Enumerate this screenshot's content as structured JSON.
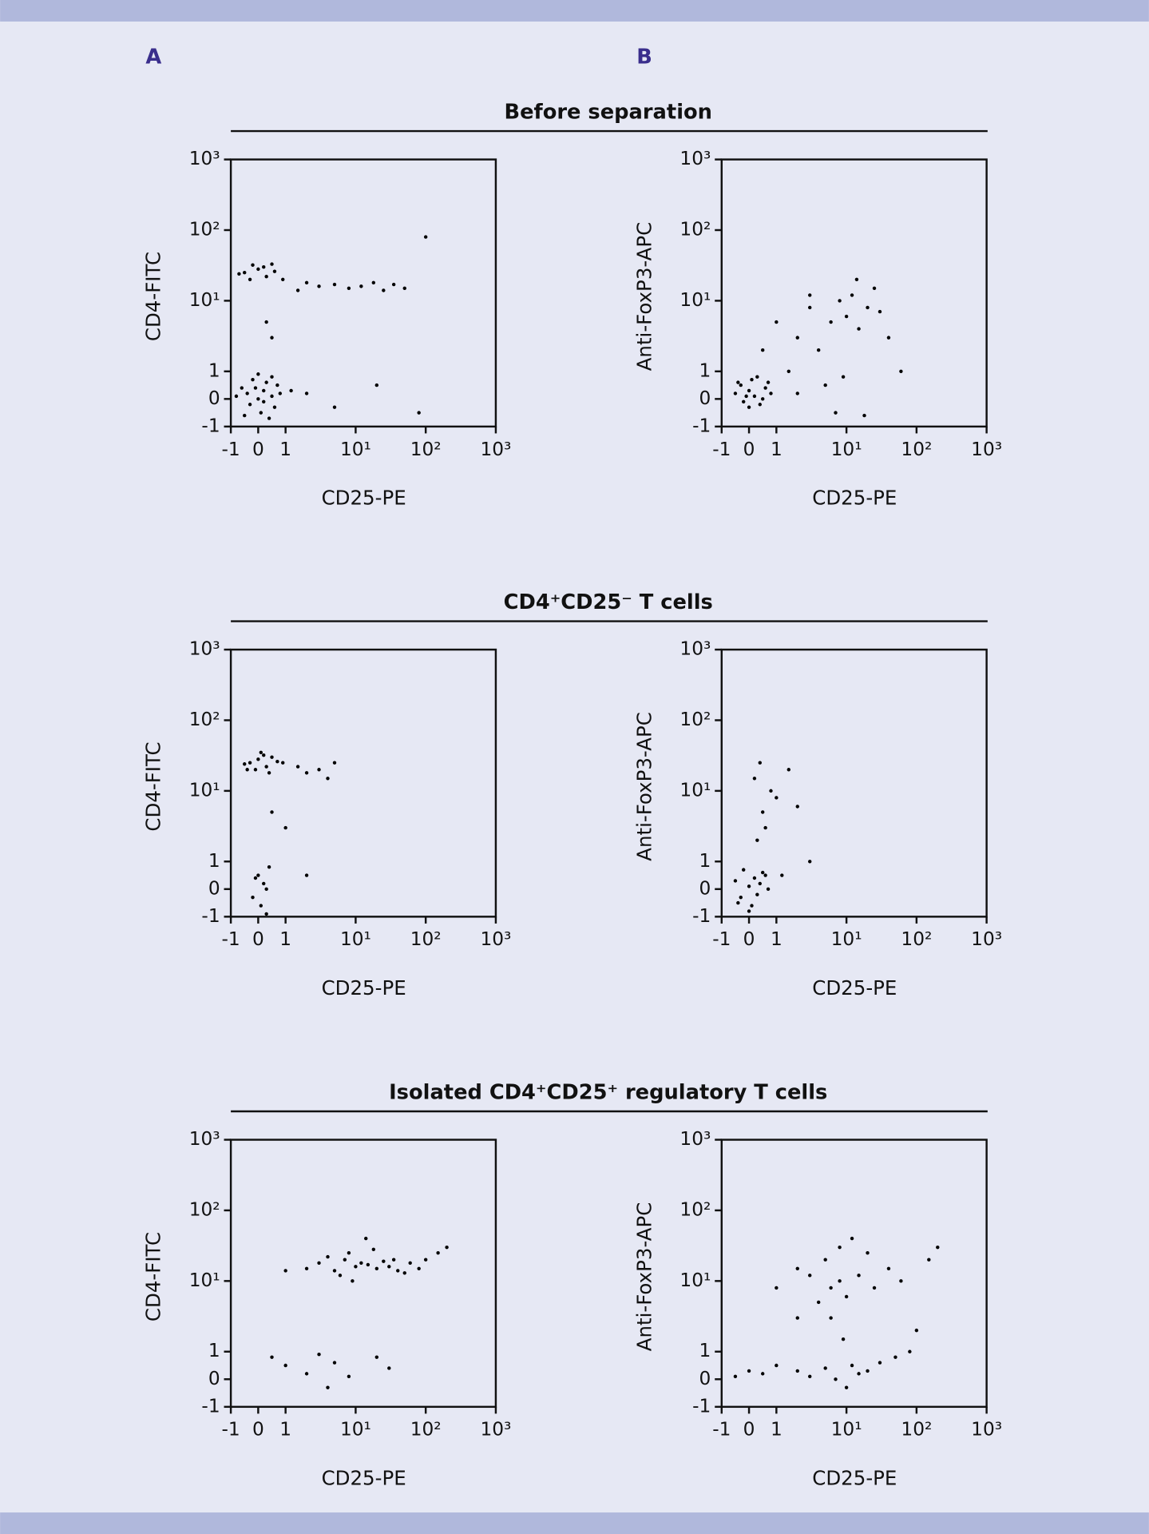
{
  "panel_labels": [
    "A",
    "B"
  ],
  "sections": [
    "Before separation",
    "CD4⁺CD25⁻ T cells",
    "Isolated CD4⁺CD25⁺ regulatory T cells"
  ],
  "chart_data": [
    {
      "type": "scatter",
      "xlabel": "CD25-PE",
      "ylabel": "CD4-FITC",
      "xscale": "biexponential",
      "yscale": "biexponential",
      "color": "#000000",
      "xlim": [
        -1,
        1000
      ],
      "ylim": [
        -1,
        1000
      ],
      "xticks": [
        -1,
        0,
        1,
        {
          "value": 10,
          "label": "10¹"
        },
        {
          "value": 100,
          "label": "10²"
        },
        {
          "value": 1000,
          "label": "10³"
        }
      ],
      "yticks": [
        -1,
        0,
        1,
        {
          "value": 10,
          "label": "10¹"
        },
        {
          "value": 100,
          "label": "10²"
        },
        {
          "value": 1000,
          "label": "10³"
        }
      ],
      "x": [
        0,
        0.2,
        -0.3,
        0.5,
        -0.6,
        0.1,
        0.3,
        -0.2,
        0.6,
        -0.5,
        0.8,
        0.4,
        -0.8,
        0,
        0.7,
        -0.4,
        0.2,
        1.2,
        -0.1,
        0.5,
        -0.5,
        0,
        0.3,
        -0.2,
        0.6,
        0.9,
        -0.7,
        0.2,
        0.5,
        -0.3,
        2,
        3,
        5,
        8,
        12,
        18,
        25,
        35,
        50,
        1.5,
        0.5,
        0.3,
        2,
        5,
        20,
        80,
        100
      ],
      "y": [
        0,
        0.3,
        -0.2,
        0.1,
        0.4,
        -0.5,
        0.6,
        0.7,
        -0.3,
        -0.6,
        0.2,
        -0.7,
        0.1,
        0.9,
        0.5,
        0.2,
        -0.1,
        0.3,
        0.4,
        0.8,
        25,
        28,
        22,
        32,
        26,
        20,
        24,
        30,
        33,
        20,
        18,
        16,
        17,
        15,
        16,
        18,
        14,
        17,
        15,
        14,
        3,
        5,
        0.2,
        -0.3,
        0.5,
        -0.5,
        80
      ]
    },
    {
      "type": "scatter",
      "xlabel": "CD25-PE",
      "ylabel": "Anti-FoxP3-APC",
      "xscale": "biexponential",
      "yscale": "biexponential",
      "color": "#000000",
      "xlim": [
        -1,
        1000
      ],
      "ylim": [
        -1,
        1000
      ],
      "xticks": [
        -1,
        0,
        1,
        {
          "value": 10,
          "label": "10¹"
        },
        {
          "value": 100,
          "label": "10²"
        },
        {
          "value": 1000,
          "label": "10³"
        }
      ],
      "yticks": [
        -1,
        0,
        1,
        {
          "value": 10,
          "label": "10¹"
        },
        {
          "value": 100,
          "label": "10²"
        },
        {
          "value": 1000,
          "label": "10³"
        }
      ],
      "x": [
        0,
        0.2,
        -0.3,
        0.4,
        -0.5,
        0.1,
        0.6,
        -0.2,
        0.3,
        0.8,
        -0.4,
        0.5,
        0,
        0.7,
        -0.1,
        1.5,
        2,
        3,
        4,
        6,
        8,
        10,
        12,
        15,
        20,
        25,
        30,
        40,
        5,
        7,
        3,
        2,
        9,
        14,
        0.5,
        1,
        60,
        18
      ],
      "y": [
        0.3,
        0.1,
        0.5,
        -0.2,
        0.2,
        0.7,
        0.4,
        -0.1,
        0.8,
        0.2,
        0.6,
        0,
        -0.3,
        0.6,
        0.1,
        1,
        3,
        8,
        2,
        5,
        10,
        6,
        12,
        4,
        8,
        15,
        7,
        3,
        0.5,
        -0.5,
        12,
        0.2,
        0.8,
        20,
        2,
        5,
        1,
        -0.6
      ]
    },
    {
      "type": "scatter",
      "xlabel": "CD25-PE",
      "ylabel": "CD4-FITC",
      "xscale": "biexponential",
      "yscale": "biexponential",
      "color": "#000000",
      "xlim": [
        -1,
        1000
      ],
      "ylim": [
        -1,
        1000
      ],
      "xticks": [
        -1,
        0,
        1,
        {
          "value": 10,
          "label": "10¹"
        },
        {
          "value": 100,
          "label": "10²"
        },
        {
          "value": 1000,
          "label": "10³"
        }
      ],
      "yticks": [
        -1,
        0,
        1,
        {
          "value": 10,
          "label": "10¹"
        },
        {
          "value": 100,
          "label": "10²"
        },
        {
          "value": 1000,
          "label": "10³"
        }
      ],
      "x": [
        -0.3,
        0,
        0.3,
        0.5,
        -0.5,
        0.2,
        0.7,
        -0.1,
        0.4,
        0.9,
        -0.4,
        0.1,
        1.5,
        2,
        3,
        4,
        5,
        0,
        0.2,
        -0.2,
        0.4,
        0.1,
        0.3,
        -0.1,
        0.5,
        1,
        2,
        0.3
      ],
      "y": [
        25,
        28,
        22,
        30,
        24,
        32,
        26,
        20,
        18,
        25,
        20,
        35,
        22,
        18,
        20,
        15,
        25,
        0.5,
        0.2,
        -0.3,
        0.8,
        -0.6,
        0,
        0.4,
        5,
        3,
        0.5,
        -0.9
      ]
    },
    {
      "type": "scatter",
      "xlabel": "CD25-PE",
      "ylabel": "Anti-FoxP3-APC",
      "xscale": "biexponential",
      "yscale": "biexponential",
      "color": "#000000",
      "xlim": [
        -1,
        1000
      ],
      "ylim": [
        -1,
        1000
      ],
      "xticks": [
        -1,
        0,
        1,
        {
          "value": 10,
          "label": "10¹"
        },
        {
          "value": 100,
          "label": "10²"
        },
        {
          "value": 1000,
          "label": "10³"
        }
      ],
      "yticks": [
        -1,
        0,
        1,
        {
          "value": 10,
          "label": "10¹"
        },
        {
          "value": 100,
          "label": "10²"
        },
        {
          "value": 1000,
          "label": "10³"
        }
      ],
      "x": [
        0,
        0.2,
        -0.3,
        0.4,
        -0.5,
        0.1,
        0.6,
        -0.2,
        0.3,
        0.7,
        -0.4,
        0.5,
        0,
        0.3,
        0.5,
        0.8,
        1,
        0.2,
        0.6,
        1.5,
        2,
        0.4,
        3,
        1.2
      ],
      "y": [
        0.1,
        0.4,
        -0.3,
        0.2,
        0.3,
        -0.6,
        0.5,
        0.7,
        -0.2,
        0,
        -0.5,
        0.6,
        -0.8,
        2,
        5,
        10,
        8,
        15,
        3,
        20,
        6,
        25,
        1,
        0.5
      ]
    },
    {
      "type": "scatter",
      "xlabel": "CD25-PE",
      "ylabel": "CD4-FITC",
      "xscale": "biexponential",
      "yscale": "biexponential",
      "color": "#000000",
      "xlim": [
        -1,
        1000
      ],
      "ylim": [
        -1,
        1000
      ],
      "xticks": [
        -1,
        0,
        1,
        {
          "value": 10,
          "label": "10¹"
        },
        {
          "value": 100,
          "label": "10²"
        },
        {
          "value": 1000,
          "label": "10³"
        }
      ],
      "yticks": [
        -1,
        0,
        1,
        {
          "value": 10,
          "label": "10¹"
        },
        {
          "value": 100,
          "label": "10²"
        },
        {
          "value": 1000,
          "label": "10³"
        }
      ],
      "x": [
        2,
        3,
        5,
        7,
        10,
        12,
        15,
        20,
        25,
        30,
        40,
        60,
        80,
        8,
        6,
        4,
        18,
        35,
        50,
        1,
        100,
        150,
        200,
        9,
        14,
        0.5,
        1,
        2,
        4,
        5,
        8,
        20,
        30,
        3
      ],
      "y": [
        15,
        18,
        14,
        20,
        16,
        18,
        17,
        15,
        19,
        16,
        14,
        18,
        15,
        25,
        12,
        22,
        28,
        20,
        13,
        14,
        20,
        25,
        30,
        10,
        40,
        0.8,
        0.5,
        0.2,
        -0.3,
        0.6,
        0.1,
        0.8,
        0.4,
        0.9
      ]
    },
    {
      "type": "scatter",
      "xlabel": "CD25-PE",
      "ylabel": "Anti-FoxP3-APC",
      "xscale": "biexponential",
      "yscale": "biexponential",
      "color": "#000000",
      "xlim": [
        -1,
        1000
      ],
      "ylim": [
        -1,
        1000
      ],
      "xticks": [
        -1,
        0,
        1,
        {
          "value": 10,
          "label": "10¹"
        },
        {
          "value": 100,
          "label": "10²"
        },
        {
          "value": 1000,
          "label": "10³"
        }
      ],
      "yticks": [
        -1,
        0,
        1,
        {
          "value": 10,
          "label": "10¹"
        },
        {
          "value": 100,
          "label": "10²"
        },
        {
          "value": 1000,
          "label": "10³"
        }
      ],
      "x": [
        0.5,
        1,
        2,
        3,
        5,
        7,
        10,
        12,
        15,
        20,
        30,
        50,
        80,
        100,
        4,
        6,
        8,
        15,
        25,
        40,
        60,
        2,
        3,
        5,
        10,
        20,
        0,
        -0.5,
        1,
        2,
        8,
        150,
        200,
        9,
        6,
        12
      ],
      "y": [
        0.2,
        0.5,
        0.3,
        0.1,
        0.4,
        0,
        -0.3,
        0.5,
        0.2,
        0.3,
        0.6,
        0.8,
        1,
        2,
        5,
        8,
        10,
        12,
        8,
        15,
        10,
        3,
        12,
        20,
        6,
        25,
        0.3,
        0.1,
        8,
        15,
        30,
        20,
        30,
        1.5,
        3,
        40
      ]
    }
  ]
}
